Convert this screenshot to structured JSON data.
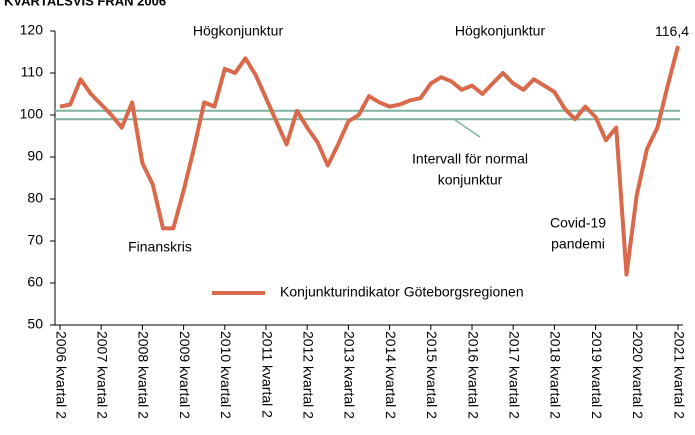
{
  "chart_data": {
    "type": "line",
    "title": "KVARTALSVIS FRÅN 2006",
    "categories": [
      "2006 kvartal 2",
      null,
      null,
      null,
      "2007 kvartal 2",
      null,
      null,
      null,
      "2008 kvartal 2",
      null,
      null,
      null,
      "2009 kvartal 2",
      null,
      null,
      null,
      "2010 kvartal 2",
      null,
      null,
      null,
      "2011 kvartal 2",
      null,
      null,
      null,
      "2012 kvartal 2",
      null,
      null,
      null,
      "2013 kvartal 2",
      null,
      null,
      null,
      "2014 kvartal 2",
      null,
      null,
      null,
      "2015 kvartal 2",
      null,
      null,
      null,
      "2016 kvartal 2",
      null,
      null,
      null,
      "2017 kvartal 2",
      null,
      null,
      null,
      "2018 kvartal 2",
      null,
      null,
      null,
      "2019 kvartal 2",
      null,
      null,
      null,
      "2020 kvartal 2",
      null,
      null,
      null,
      "2021 kvartal 2"
    ],
    "series": [
      {
        "name": "Konjunkturindikator Göteborgsregionen",
        "color": "#d9694a",
        "values": [
          102,
          102.5,
          108.5,
          105,
          102.5,
          100,
          97,
          103,
          88.5,
          83.5,
          73,
          73,
          82,
          92,
          103,
          102,
          111,
          110,
          113.5,
          109.5,
          104,
          98.5,
          93,
          101,
          97,
          93.5,
          88,
          93,
          98.5,
          100,
          104.5,
          103,
          102,
          102.5,
          103.5,
          104,
          107.5,
          109,
          108,
          106,
          107,
          105,
          107.5,
          110,
          107.5,
          106,
          108.5,
          107,
          105.5,
          101.5,
          99,
          102,
          99.5,
          94,
          97,
          62,
          81,
          92,
          97,
          107,
          116.4
        ],
        "value_labels": [
          null,
          null,
          null,
          null,
          null,
          null,
          null,
          null,
          null,
          null,
          null,
          null,
          null,
          null,
          null,
          null,
          null,
          null,
          null,
          null,
          null,
          null,
          null,
          null,
          null,
          null,
          null,
          null,
          null,
          null,
          null,
          null,
          null,
          null,
          null,
          null,
          null,
          null,
          null,
          null,
          null,
          null,
          null,
          null,
          null,
          null,
          null,
          null,
          null,
          null,
          null,
          null,
          null,
          null,
          null,
          null,
          null,
          null,
          null,
          null,
          "116,4"
        ]
      }
    ],
    "reference_lines": [
      {
        "value": 101,
        "color": "#7fb3a0"
      },
      {
        "value": 99,
        "color": "#7fb3a0"
      }
    ],
    "annotations": [
      [
        "Högkonjunktur"
      ],
      [
        "Högkonjunktur"
      ],
      [
        "Finanskris"
      ],
      [
        "Intervall för normal",
        "konjunktur"
      ],
      [
        "Covid-19",
        "pandemi"
      ]
    ],
    "ylim": [
      50,
      120
    ],
    "yticks": [
      50,
      60,
      70,
      80,
      90,
      100,
      110,
      120
    ],
    "grid": false,
    "legend": "bottom"
  }
}
